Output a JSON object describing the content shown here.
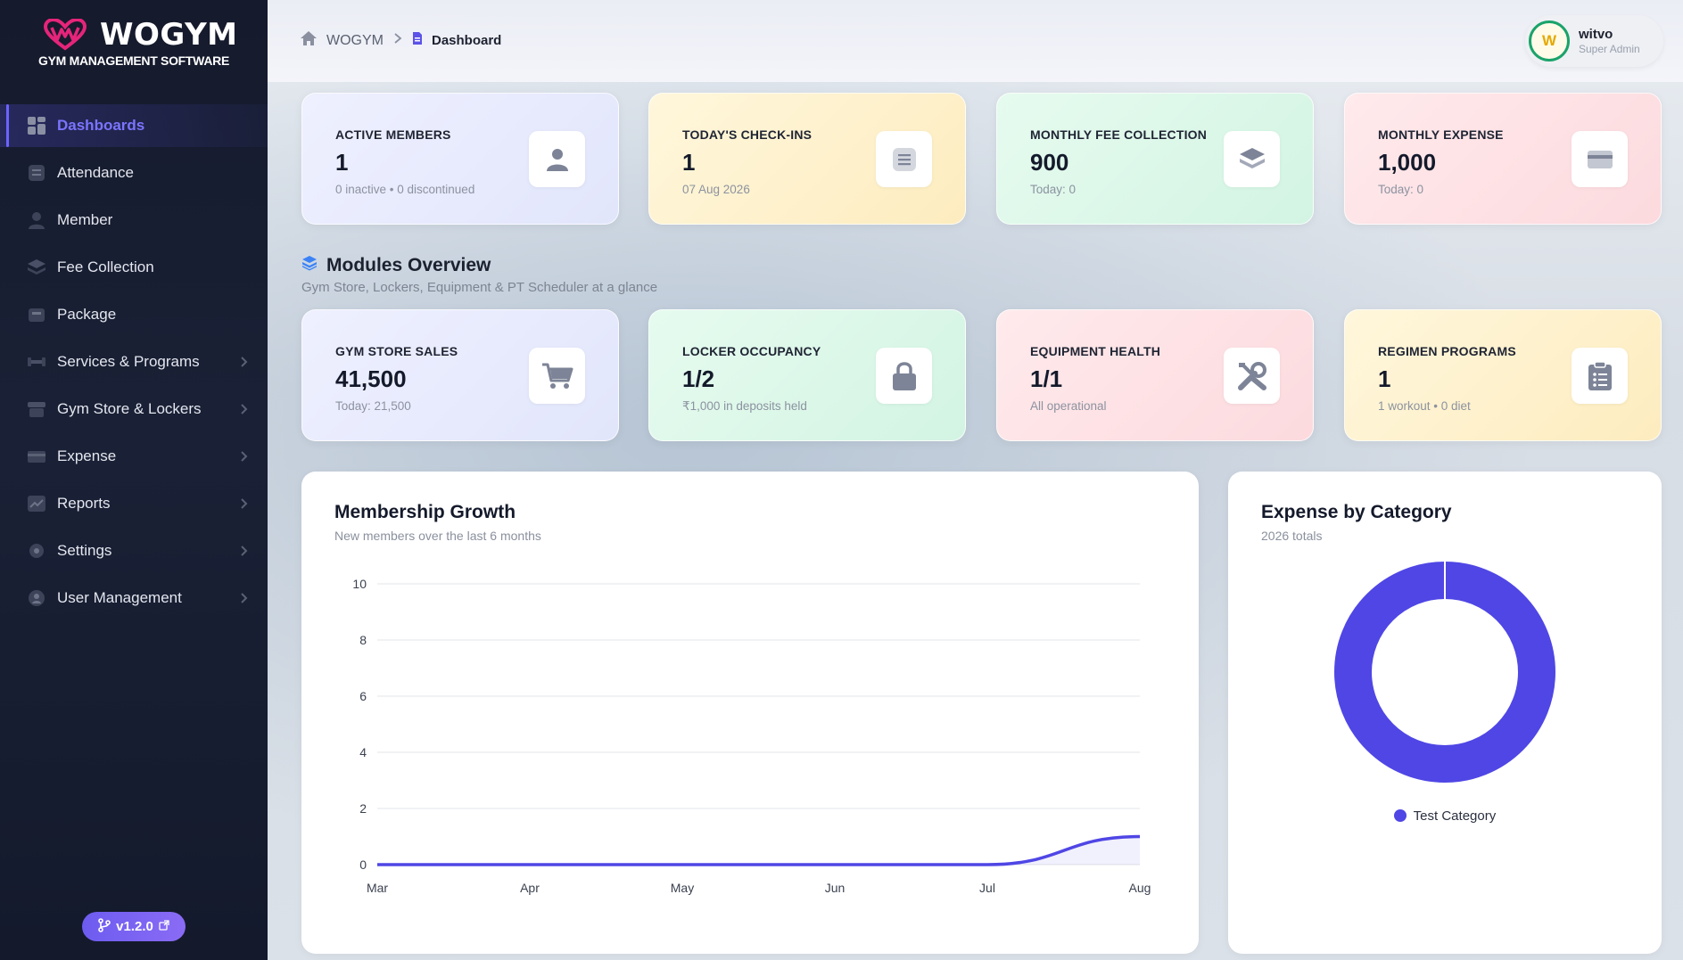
{
  "app": {
    "name": "WOGYM",
    "tagline": "GYM MANAGEMENT SOFTWARE",
    "version": "v1.2.0"
  },
  "sidebar": {
    "items": [
      {
        "label": "Dashboards",
        "icon": "grid-icon",
        "active": true
      },
      {
        "label": "Attendance",
        "icon": "list-icon"
      },
      {
        "label": "Member",
        "icon": "person-icon"
      },
      {
        "label": "Fee Collection",
        "icon": "layers-icon"
      },
      {
        "label": "Package",
        "icon": "package-icon"
      },
      {
        "label": "Services & Programs",
        "icon": "dumbbell-icon",
        "expandable": true
      },
      {
        "label": "Gym Store & Lockers",
        "icon": "store-icon",
        "expandable": true
      },
      {
        "label": "Expense",
        "icon": "card-icon",
        "expandable": true
      },
      {
        "label": "Reports",
        "icon": "chart-icon",
        "expandable": true
      },
      {
        "label": "Settings",
        "icon": "gear-icon",
        "expandable": true
      },
      {
        "label": "User Management",
        "icon": "user-circle-icon",
        "expandable": true
      }
    ]
  },
  "header": {
    "breadcrumb": {
      "root": "WOGYM",
      "current": "Dashboard"
    },
    "user": {
      "initial": "W",
      "name": "witvo",
      "role": "Super Admin"
    }
  },
  "stats": [
    {
      "label": "ACTIVE MEMBERS",
      "value": "1",
      "sub": "0 inactive • 0 discontinued",
      "icon": "person-icon"
    },
    {
      "label": "TODAY'S CHECK-INS",
      "value": "1",
      "sub": "07 Aug 2026",
      "icon": "list-icon"
    },
    {
      "label": "MONTHLY FEE COLLECTION",
      "value": "900",
      "sub": "Today: 0",
      "icon": "layers-icon"
    },
    {
      "label": "MONTHLY EXPENSE",
      "value": "1,000",
      "sub": "Today: 0",
      "icon": "card-icon"
    }
  ],
  "modules": {
    "title": "Modules Overview",
    "subtitle": "Gym Store, Lockers, Equipment & PT Scheduler at a glance",
    "cards": [
      {
        "label": "GYM STORE SALES",
        "value": "41,500",
        "sub": "Today: 21,500",
        "icon": "cart-icon"
      },
      {
        "label": "LOCKER OCCUPANCY",
        "value": "1/2",
        "sub": "₹1,000 in deposits held",
        "icon": "lock-icon"
      },
      {
        "label": "EQUIPMENT HEALTH",
        "value": "1/1",
        "sub": "All operational",
        "icon": "tools-icon"
      },
      {
        "label": "REGIMEN PROGRAMS",
        "value": "1",
        "sub": "1 workout • 0 diet",
        "icon": "clipboard-icon"
      }
    ]
  },
  "colors": {
    "accent": "#4f46e5",
    "active_nav": "#7b74ff",
    "avatar_ring": "#1aa36a"
  },
  "chart_data": [
    {
      "type": "area",
      "title": "Membership Growth",
      "subtitle": "New members over the last 6 months",
      "categories": [
        "Mar",
        "Apr",
        "May",
        "Jun",
        "Jul",
        "Aug"
      ],
      "values": [
        0,
        0,
        0,
        0,
        0,
        1
      ],
      "yticks": [
        0,
        2,
        4,
        6,
        8,
        10
      ],
      "ylim": [
        0,
        10
      ],
      "grid": true,
      "color": "#4f46e5"
    },
    {
      "type": "pie",
      "title": "Expense by Category",
      "subtitle": "2026 totals",
      "donut": true,
      "labels": [
        "Test Category"
      ],
      "values": [
        1000
      ],
      "colors": [
        "#4f46e5"
      ],
      "legend_position": "bottom"
    }
  ]
}
